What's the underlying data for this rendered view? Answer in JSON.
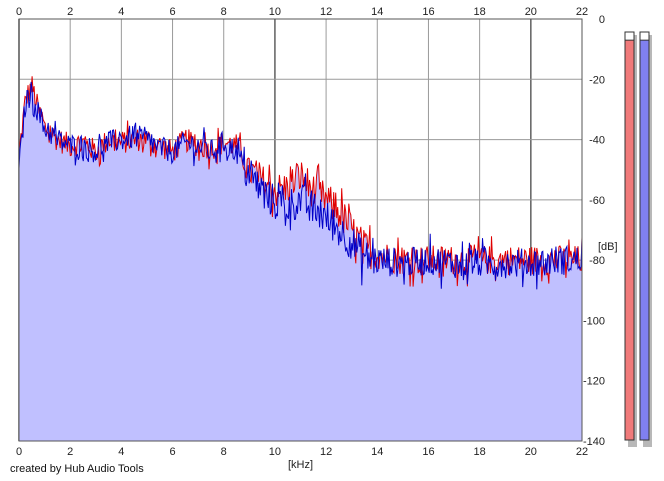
{
  "chart_data": {
    "type": "area",
    "xlabel": "[kHz]",
    "ylabel": "[dB]",
    "xlim": [
      0,
      22
    ],
    "ylim": [
      -140,
      0
    ],
    "xticks": [
      0,
      2,
      4,
      6,
      8,
      10,
      12,
      14,
      16,
      18,
      20,
      22
    ],
    "yticks": [
      0,
      -20,
      -40,
      -60,
      -80,
      -100,
      -120,
      -140
    ],
    "grid": true,
    "series": [
      {
        "color": "#e00000",
        "x": [
          0,
          0.25,
          0.5,
          0.75,
          1.0,
          1.5,
          2.0,
          2.5,
          3.0,
          3.5,
          4.0,
          4.5,
          5.0,
          5.5,
          6.0,
          6.5,
          7.0,
          7.5,
          8.0,
          8.5,
          9.0,
          9.5,
          10.0,
          10.5,
          11.0,
          11.5,
          12.0,
          12.5,
          13.0,
          13.5,
          14.0,
          15.0,
          16.0,
          17.0,
          18.0,
          19.0,
          20.0,
          21.0,
          22.0
        ],
        "values": [
          -45,
          -27,
          -22,
          -30,
          -36,
          -40,
          -42,
          -41,
          -44,
          -40,
          -41,
          -40,
          -40,
          -42,
          -44,
          -40,
          -42,
          -43,
          -41,
          -42,
          -50,
          -54,
          -57,
          -56,
          -52,
          -57,
          -60,
          -64,
          -70,
          -76,
          -78,
          -80,
          -80,
          -80,
          -80,
          -80,
          -80,
          -80,
          -80
        ]
      },
      {
        "color": "#0000c8",
        "x": [
          0,
          0.25,
          0.5,
          0.75,
          1.0,
          1.5,
          2.0,
          2.5,
          3.0,
          3.5,
          4.0,
          4.5,
          5.0,
          5.5,
          6.0,
          6.5,
          7.0,
          7.5,
          8.0,
          8.5,
          9.0,
          9.5,
          10.0,
          10.5,
          11.0,
          11.5,
          12.0,
          12.5,
          13.0,
          13.5,
          14.0,
          15.0,
          16.0,
          17.0,
          18.0,
          19.0,
          20.0,
          21.0,
          22.0
        ],
        "values": [
          -50,
          -28,
          -24,
          -31,
          -36,
          -40,
          -42,
          -42,
          -44,
          -41,
          -40,
          -39,
          -40,
          -43,
          -44,
          -41,
          -42,
          -44,
          -41,
          -44,
          -52,
          -57,
          -61,
          -62,
          -60,
          -63,
          -66,
          -70,
          -74,
          -79,
          -80,
          -81,
          -80,
          -81,
          -81,
          -81,
          -81,
          -80,
          -80
        ]
      }
    ],
    "meters": [
      {
        "level": 0.98,
        "color": "#f07a7a"
      },
      {
        "level": 0.98,
        "color": "#8080f0"
      }
    ]
  },
  "footer": {
    "credit": "created by Hub Audio Tools"
  },
  "colors": {
    "fill": "#c0c0ff",
    "grid": "#9a9a9a",
    "grid_major": "#6a6a6a",
    "axis": "#555555"
  }
}
